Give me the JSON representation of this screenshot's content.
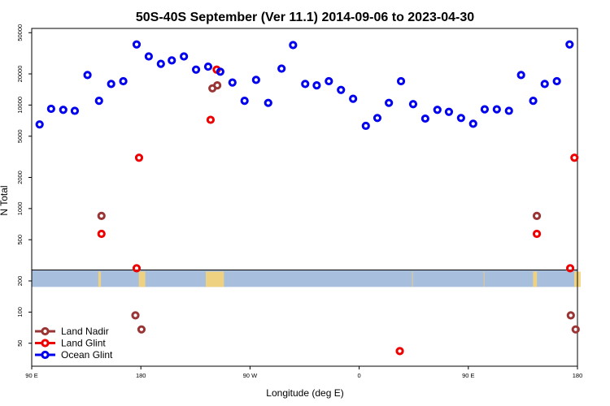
{
  "chart_data": {
    "type": "scatter",
    "title": "50S-40S September (Ver 11.1)   2014-09-06 to 2023-04-30",
    "xlabel": "Longitude (deg E)",
    "ylabel": "N Total",
    "y_scale": "log",
    "xlim": [
      90,
      540
    ],
    "ylim": [
      30,
      55000
    ],
    "x_ticks": [
      {
        "value": 90,
        "label": "90 E"
      },
      {
        "value": 180,
        "label": "180"
      },
      {
        "value": 270,
        "label": "90 W"
      },
      {
        "value": 360,
        "label": "0"
      },
      {
        "value": 450,
        "label": "90 E"
      },
      {
        "value": 540,
        "label": "180"
      }
    ],
    "y_ticks": [
      {
        "value": 50,
        "label": "50"
      },
      {
        "value": 100,
        "label": "100"
      },
      {
        "value": 200,
        "label": "200"
      },
      {
        "value": 500,
        "label": "500"
      },
      {
        "value": 1000,
        "label": "1000"
      },
      {
        "value": 2000,
        "label": "2000"
      },
      {
        "value": 5000,
        "label": "5000"
      },
      {
        "value": 10000,
        "label": "10000"
      },
      {
        "value": 20000,
        "label": "20000"
      },
      {
        "value": 50000,
        "label": "50000"
      }
    ],
    "map_band": {
      "y_bottom": 175,
      "y_top": 255,
      "color": "#a8bedd",
      "land_color": "#f5d478"
    },
    "legend": {
      "position": "bottom-left"
    },
    "series": [
      {
        "name": "Land Nadir",
        "color": "#9a3535",
        "points": [
          [
            147.5,
            850
          ],
          [
            175.5,
            93
          ],
          [
            180.5,
            68
          ],
          [
            239,
            14500
          ],
          [
            243,
            15500
          ],
          [
            506.5,
            850
          ],
          [
            534.5,
            93
          ],
          [
            538.5,
            68
          ]
        ]
      },
      {
        "name": "Land Glint",
        "color": "#ee0000",
        "points": [
          [
            147.5,
            570
          ],
          [
            176.5,
            265
          ],
          [
            178.5,
            3100
          ],
          [
            237.5,
            7200
          ],
          [
            242.5,
            22000
          ],
          [
            393.5,
            42
          ],
          [
            506.5,
            570
          ],
          [
            534,
            265
          ],
          [
            537.5,
            3100
          ]
        ]
      },
      {
        "name": "Ocean Glint",
        "color": "#0000ee",
        "points": [
          [
            96.5,
            6500
          ],
          [
            106,
            9200
          ],
          [
            116,
            9000
          ],
          [
            125.5,
            8800
          ],
          [
            136,
            19500
          ],
          [
            145.5,
            11000
          ],
          [
            155.5,
            16000
          ],
          [
            165.5,
            17000
          ],
          [
            176.5,
            38500
          ],
          [
            186.5,
            29500
          ],
          [
            196.5,
            25000
          ],
          [
            205.5,
            27000
          ],
          [
            215.5,
            29500
          ],
          [
            225.5,
            22000
          ],
          [
            235.5,
            23500
          ],
          [
            245.5,
            21000
          ],
          [
            255.5,
            16500
          ],
          [
            265.5,
            11000
          ],
          [
            275,
            17500
          ],
          [
            285,
            10500
          ],
          [
            296,
            22500
          ],
          [
            305.5,
            38000
          ],
          [
            315.5,
            16000
          ],
          [
            325,
            15500
          ],
          [
            335,
            17000
          ],
          [
            345,
            14000
          ],
          [
            355,
            11500
          ],
          [
            365.5,
            6300
          ],
          [
            375,
            7500
          ],
          [
            384.5,
            10500
          ],
          [
            394.5,
            17000
          ],
          [
            404.5,
            10200
          ],
          [
            414.5,
            7400
          ],
          [
            424.5,
            9000
          ],
          [
            434,
            8600
          ],
          [
            444,
            7500
          ],
          [
            454,
            6600
          ],
          [
            463.5,
            9100
          ],
          [
            473.5,
            9100
          ],
          [
            483.5,
            8800
          ],
          [
            493.5,
            19500
          ],
          [
            503.5,
            11000
          ],
          [
            513,
            16000
          ],
          [
            523,
            17000
          ],
          [
            533.5,
            38500
          ]
        ]
      }
    ]
  }
}
